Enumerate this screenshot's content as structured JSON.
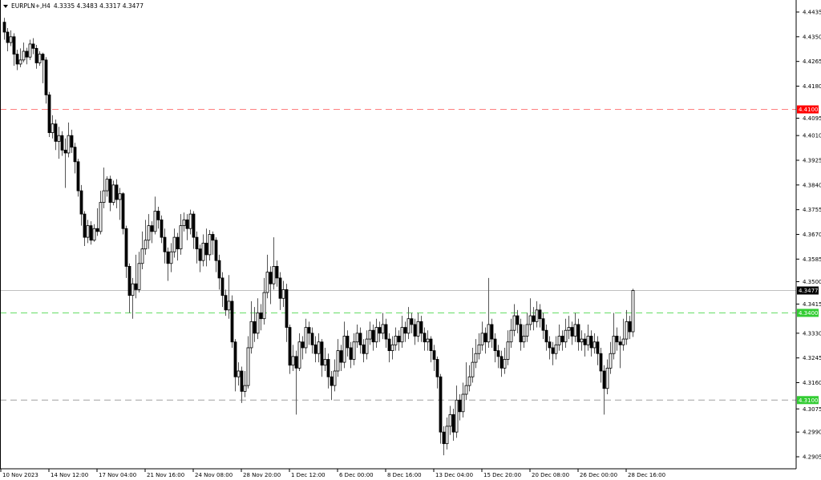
{
  "chart_data": {
    "type": "candlestick",
    "title": "EURPLN+,H4",
    "ohlc_readout": "4.3335 4.3483 4.3317 4.3477",
    "ylim": [
      4.2905,
      4.4435
    ],
    "y_ticks": [
      "4.4435",
      "4.4350",
      "4.4265",
      "4.4180",
      "4.4095",
      "4.4010",
      "4.3925",
      "4.3840",
      "4.3755",
      "4.3670",
      "4.3585",
      "4.3500",
      "4.3415",
      "4.3330",
      "4.3245",
      "4.3160",
      "4.3075",
      "4.2990",
      "4.2905"
    ],
    "x_tick_labels": [
      "10 Nov 2023",
      "14 Nov 12:00",
      "17 Nov 04:00",
      "21 Nov 16:00",
      "24 Nov 08:00",
      "28 Nov 20:00",
      "1 Dec 12:00",
      "6 Dec 00:00",
      "8 Dec 16:00",
      "13 Dec 04:00",
      "15 Dec 20:00",
      "20 Dec 08:00",
      "26 Dec 00:00",
      "28 Dec 16:00"
    ],
    "x_tick_every_bars": 15,
    "grid": false,
    "colors": {
      "bull_body": "#ffffff",
      "bear_body": "#000000",
      "outline": "#000000",
      "wick": "#808080"
    },
    "levels": [
      {
        "price": 4.41,
        "label": "4.4100",
        "line_color": "#ff8080",
        "label_bg": "#ff0000",
        "style": "dashed"
      },
      {
        "price": 4.3477,
        "label": "4.3477",
        "line_color": "#c0c0c0",
        "label_bg": "#000000",
        "style": "solid"
      },
      {
        "price": 4.34,
        "label": "4.3400",
        "line_color": "#66dd66",
        "label_bg": "#33cc33",
        "style": "dashed"
      },
      {
        "price": 4.31,
        "label": "4.3100",
        "line_color": "#a0a0a0",
        "label_bg": "#33cc33",
        "style": "dashed"
      }
    ],
    "ohlc": [
      [
        4.44,
        4.4415,
        4.434,
        4.4366
      ],
      [
        4.4366,
        4.438,
        4.43,
        4.433
      ],
      [
        4.433,
        4.4372,
        4.4318,
        4.435
      ],
      [
        4.435,
        4.4362,
        4.425,
        4.429
      ],
      [
        4.429,
        4.4305,
        4.4235,
        4.4256
      ],
      [
        4.4256,
        4.431,
        4.4245,
        4.427
      ],
      [
        4.427,
        4.433,
        4.4262,
        4.43
      ],
      [
        4.43,
        4.4312,
        4.4255,
        4.428
      ],
      [
        4.428,
        4.434,
        4.427,
        4.4325
      ],
      [
        4.4325,
        4.4345,
        4.429,
        4.431
      ],
      [
        4.431,
        4.4322,
        4.424,
        4.426
      ],
      [
        4.426,
        4.43,
        4.425,
        4.429
      ],
      [
        4.429,
        4.4295,
        4.419,
        4.427
      ],
      [
        4.427,
        4.428,
        4.412,
        4.415
      ],
      [
        4.415,
        4.416,
        4.4005,
        4.402
      ],
      [
        4.402,
        4.408,
        4.4,
        4.405
      ],
      [
        4.405,
        4.4065,
        4.396,
        4.399
      ],
      [
        4.399,
        4.404,
        4.393,
        4.401
      ],
      [
        4.401,
        4.4025,
        4.394,
        4.396
      ],
      [
        4.396,
        4.4,
        4.383,
        4.395
      ],
      [
        4.395,
        4.4055,
        4.3935,
        4.401
      ],
      [
        4.401,
        4.403,
        4.395,
        4.397
      ],
      [
        4.397,
        4.3985,
        4.388,
        4.392
      ],
      [
        4.392,
        4.393,
        4.38,
        4.382
      ],
      [
        4.382,
        4.384,
        4.37,
        4.374
      ],
      [
        4.374,
        4.375,
        4.363,
        4.366
      ],
      [
        4.366,
        4.372,
        4.364,
        4.37
      ],
      [
        4.37,
        4.3715,
        4.3635,
        4.365
      ],
      [
        4.365,
        4.3705,
        4.3645,
        4.369
      ],
      [
        4.369,
        4.376,
        4.3665,
        4.368
      ],
      [
        4.368,
        4.382,
        4.367,
        4.378
      ],
      [
        4.378,
        4.39,
        4.376,
        4.382
      ],
      [
        4.382,
        4.387,
        4.38,
        4.386
      ],
      [
        4.386,
        4.3872,
        4.375,
        4.378
      ],
      [
        4.378,
        4.3855,
        4.377,
        4.384
      ],
      [
        4.384,
        4.386,
        4.376,
        4.379
      ],
      [
        4.379,
        4.383,
        4.372,
        4.381
      ],
      [
        4.381,
        4.3815,
        4.367,
        4.369
      ],
      [
        4.369,
        4.37,
        4.352,
        4.356
      ],
      [
        4.356,
        4.357,
        4.34,
        4.346
      ],
      [
        4.346,
        4.352,
        4.338,
        4.35
      ],
      [
        4.35,
        4.36,
        4.345,
        4.348
      ],
      [
        4.348,
        4.361,
        4.347,
        4.357
      ],
      [
        4.357,
        4.368,
        4.355,
        4.362
      ],
      [
        4.362,
        4.372,
        4.36,
        4.365
      ],
      [
        4.365,
        4.374,
        4.362,
        4.37
      ],
      [
        4.37,
        4.3715,
        4.364,
        4.368
      ],
      [
        4.368,
        4.38,
        4.367,
        4.375
      ],
      [
        4.375,
        4.3765,
        4.369,
        4.372
      ],
      [
        4.372,
        4.3735,
        4.364,
        4.366
      ],
      [
        4.366,
        4.369,
        4.357,
        4.361
      ],
      [
        4.361,
        4.3625,
        4.351,
        4.357
      ],
      [
        4.357,
        4.364,
        4.354,
        4.361
      ],
      [
        4.361,
        4.369,
        4.359,
        4.366
      ],
      [
        4.366,
        4.3675,
        4.358,
        4.362
      ],
      [
        4.362,
        4.374,
        4.36,
        4.37
      ],
      [
        4.37,
        4.3745,
        4.368,
        4.372
      ],
      [
        4.372,
        4.374,
        4.365,
        4.369
      ],
      [
        4.369,
        4.3755,
        4.367,
        4.374
      ],
      [
        4.374,
        4.375,
        4.362,
        4.366
      ],
      [
        4.366,
        4.368,
        4.357,
        4.362
      ],
      [
        4.362,
        4.3635,
        4.354,
        4.358
      ],
      [
        4.358,
        4.367,
        4.356,
        4.364
      ],
      [
        4.364,
        4.369,
        4.356,
        4.36
      ],
      [
        4.36,
        4.3685,
        4.358,
        4.367
      ],
      [
        4.367,
        4.368,
        4.36,
        4.365
      ],
      [
        4.365,
        4.366,
        4.354,
        4.358
      ],
      [
        4.358,
        4.36,
        4.348,
        4.352
      ],
      [
        4.352,
        4.354,
        4.342,
        4.346
      ],
      [
        4.346,
        4.348,
        4.339,
        4.341
      ],
      [
        4.341,
        4.353,
        4.338,
        4.344
      ],
      [
        4.344,
        4.346,
        4.328,
        4.33
      ],
      [
        4.33,
        4.331,
        4.313,
        4.318
      ],
      [
        4.318,
        4.323,
        4.315,
        4.32
      ],
      [
        4.32,
        4.3215,
        4.309,
        4.313
      ],
      [
        4.313,
        4.32,
        4.311,
        4.315
      ],
      [
        4.315,
        4.332,
        4.314,
        4.328
      ],
      [
        4.328,
        4.344,
        4.326,
        4.337
      ],
      [
        4.337,
        4.342,
        4.33,
        4.333
      ],
      [
        4.333,
        4.345,
        4.331,
        4.34
      ],
      [
        4.34,
        4.343,
        4.334,
        4.338
      ],
      [
        4.338,
        4.352,
        4.336,
        4.347
      ],
      [
        4.347,
        4.36,
        4.345,
        4.354
      ],
      [
        4.354,
        4.356,
        4.343,
        4.35
      ],
      [
        4.35,
        4.366,
        4.348,
        4.356
      ],
      [
        4.356,
        4.358,
        4.349,
        4.352
      ],
      [
        4.352,
        4.354,
        4.341,
        4.345
      ],
      [
        4.345,
        4.351,
        4.342,
        4.348
      ],
      [
        4.348,
        4.35,
        4.33,
        4.335
      ],
      [
        4.335,
        4.336,
        4.319,
        4.322
      ],
      [
        4.322,
        4.329,
        4.32,
        4.325
      ],
      [
        4.325,
        4.327,
        4.305,
        4.321
      ],
      [
        4.321,
        4.333,
        4.32,
        4.33
      ],
      [
        4.33,
        4.332,
        4.324,
        4.328
      ],
      [
        4.328,
        4.338,
        4.326,
        4.335
      ],
      [
        4.335,
        4.337,
        4.329,
        4.333
      ],
      [
        4.333,
        4.335,
        4.326,
        4.329
      ],
      [
        4.329,
        4.332,
        4.323,
        4.326
      ],
      [
        4.326,
        4.333,
        4.323,
        4.33
      ],
      [
        4.33,
        4.331,
        4.318,
        4.322
      ],
      [
        4.322,
        4.328,
        4.32,
        4.324
      ],
      [
        4.324,
        4.326,
        4.314,
        4.318
      ],
      [
        4.318,
        4.32,
        4.31,
        4.315
      ],
      [
        4.315,
        4.324,
        4.313,
        4.32
      ],
      [
        4.32,
        4.331,
        4.318,
        4.327
      ],
      [
        4.327,
        4.329,
        4.32,
        4.323
      ],
      [
        4.323,
        4.337,
        4.321,
        4.332
      ],
      [
        4.332,
        4.334,
        4.325,
        4.328
      ],
      [
        4.328,
        4.33,
        4.321,
        4.324
      ],
      [
        4.324,
        4.333,
        4.322,
        4.33
      ],
      [
        4.33,
        4.336,
        4.328,
        4.333
      ],
      [
        4.333,
        4.335,
        4.326,
        4.329
      ],
      [
        4.329,
        4.331,
        4.323,
        4.326
      ],
      [
        4.326,
        4.334,
        4.324,
        4.331
      ],
      [
        4.331,
        4.337,
        4.329,
        4.334
      ],
      [
        4.334,
        4.336,
        4.327,
        4.33
      ],
      [
        4.33,
        4.338,
        4.328,
        4.335
      ],
      [
        4.335,
        4.337,
        4.33,
        4.333
      ],
      [
        4.333,
        4.34,
        4.331,
        4.336
      ],
      [
        4.336,
        4.338,
        4.328,
        4.331
      ],
      [
        4.331,
        4.333,
        4.323,
        4.327
      ],
      [
        4.327,
        4.332,
        4.324,
        4.329
      ],
      [
        4.329,
        4.335,
        4.327,
        4.332
      ],
      [
        4.332,
        4.334,
        4.327,
        4.33
      ],
      [
        4.33,
        4.339,
        4.328,
        4.335
      ],
      [
        4.335,
        4.337,
        4.33,
        4.333
      ],
      [
        4.333,
        4.342,
        4.331,
        4.338
      ],
      [
        4.338,
        4.34,
        4.333,
        4.336
      ],
      [
        4.336,
        4.338,
        4.329,
        4.332
      ],
      [
        4.332,
        4.34,
        4.33,
        4.337
      ],
      [
        4.337,
        4.339,
        4.33,
        4.333
      ],
      [
        4.333,
        4.335,
        4.327,
        4.33
      ],
      [
        4.33,
        4.334,
        4.327,
        4.331
      ],
      [
        4.331,
        4.332,
        4.323,
        4.327
      ],
      [
        4.327,
        4.329,
        4.32,
        4.324
      ],
      [
        4.324,
        4.325,
        4.314,
        4.318
      ],
      [
        4.318,
        4.319,
        4.295,
        4.299
      ],
      [
        4.299,
        4.301,
        4.291,
        4.295
      ],
      [
        4.295,
        4.304,
        4.293,
        4.301
      ],
      [
        4.301,
        4.308,
        4.298,
        4.305
      ],
      [
        4.305,
        4.307,
        4.296,
        4.299
      ],
      [
        4.299,
        4.315,
        4.297,
        4.31
      ],
      [
        4.31,
        4.312,
        4.303,
        4.306
      ],
      [
        4.306,
        4.316,
        4.304,
        4.312
      ],
      [
        4.312,
        4.323,
        4.31,
        4.315
      ],
      [
        4.315,
        4.322,
        4.313,
        4.318
      ],
      [
        4.318,
        4.328,
        4.316,
        4.323
      ],
      [
        4.323,
        4.331,
        4.321,
        4.326
      ],
      [
        4.326,
        4.333,
        4.324,
        4.329
      ],
      [
        4.329,
        4.337,
        4.327,
        4.333
      ],
      [
        4.333,
        4.335,
        4.326,
        4.33
      ],
      [
        4.33,
        4.352,
        4.328,
        4.336
      ],
      [
        4.336,
        4.338,
        4.328,
        4.331
      ],
      [
        4.331,
        4.333,
        4.323,
        4.327
      ],
      [
        4.327,
        4.329,
        4.321,
        4.325
      ],
      [
        4.325,
        4.327,
        4.318,
        4.321
      ],
      [
        4.321,
        4.328,
        4.319,
        4.324
      ],
      [
        4.324,
        4.334,
        4.322,
        4.33
      ],
      [
        4.33,
        4.338,
        4.328,
        4.334
      ],
      [
        4.334,
        4.343,
        4.332,
        4.339
      ],
      [
        4.339,
        4.341,
        4.333,
        4.336
      ],
      [
        4.336,
        4.338,
        4.327,
        4.33
      ],
      [
        4.33,
        4.336,
        4.328,
        4.332
      ],
      [
        4.332,
        4.34,
        4.33,
        4.336
      ],
      [
        4.336,
        4.345,
        4.334,
        4.339
      ],
      [
        4.339,
        4.342,
        4.334,
        4.337
      ],
      [
        4.337,
        4.344,
        4.335,
        4.341
      ],
      [
        4.341,
        4.343,
        4.335,
        4.338
      ],
      [
        4.338,
        4.34,
        4.331,
        4.334
      ],
      [
        4.334,
        4.336,
        4.327,
        4.33
      ],
      [
        4.33,
        4.332,
        4.324,
        4.328
      ],
      [
        4.328,
        4.33,
        4.322,
        4.326
      ],
      [
        4.326,
        4.332,
        4.324,
        4.329
      ],
      [
        4.329,
        4.336,
        4.327,
        4.332
      ],
      [
        4.332,
        4.334,
        4.327,
        4.33
      ],
      [
        4.33,
        4.338,
        4.328,
        4.334
      ],
      [
        4.334,
        4.339,
        4.331,
        4.335
      ],
      [
        4.335,
        4.337,
        4.329,
        4.332
      ],
      [
        4.332,
        4.34,
        4.33,
        4.336
      ],
      [
        4.336,
        4.338,
        4.327,
        4.33
      ],
      [
        4.33,
        4.334,
        4.327,
        4.331
      ],
      [
        4.331,
        4.333,
        4.325,
        4.329
      ],
      [
        4.329,
        4.336,
        4.327,
        4.332
      ],
      [
        4.332,
        4.334,
        4.325,
        4.328
      ],
      [
        4.328,
        4.333,
        4.326,
        4.33
      ],
      [
        4.33,
        4.332,
        4.322,
        4.326
      ],
      [
        4.326,
        4.328,
        4.316,
        4.32
      ],
      [
        4.32,
        4.322,
        4.305,
        4.314
      ],
      [
        4.314,
        4.324,
        4.312,
        4.321
      ],
      [
        4.321,
        4.33,
        4.319,
        4.326
      ],
      [
        4.326,
        4.34,
        4.324,
        4.332
      ],
      [
        4.332,
        4.335,
        4.327,
        4.33
      ],
      [
        4.33,
        4.332,
        4.321,
        4.329
      ],
      [
        4.329,
        4.338,
        4.327,
        4.331
      ],
      [
        4.331,
        4.341,
        4.329,
        4.337
      ],
      [
        4.337,
        4.339,
        4.331,
        4.3335
      ],
      [
        4.3335,
        4.3483,
        4.3317,
        4.3477
      ]
    ]
  }
}
